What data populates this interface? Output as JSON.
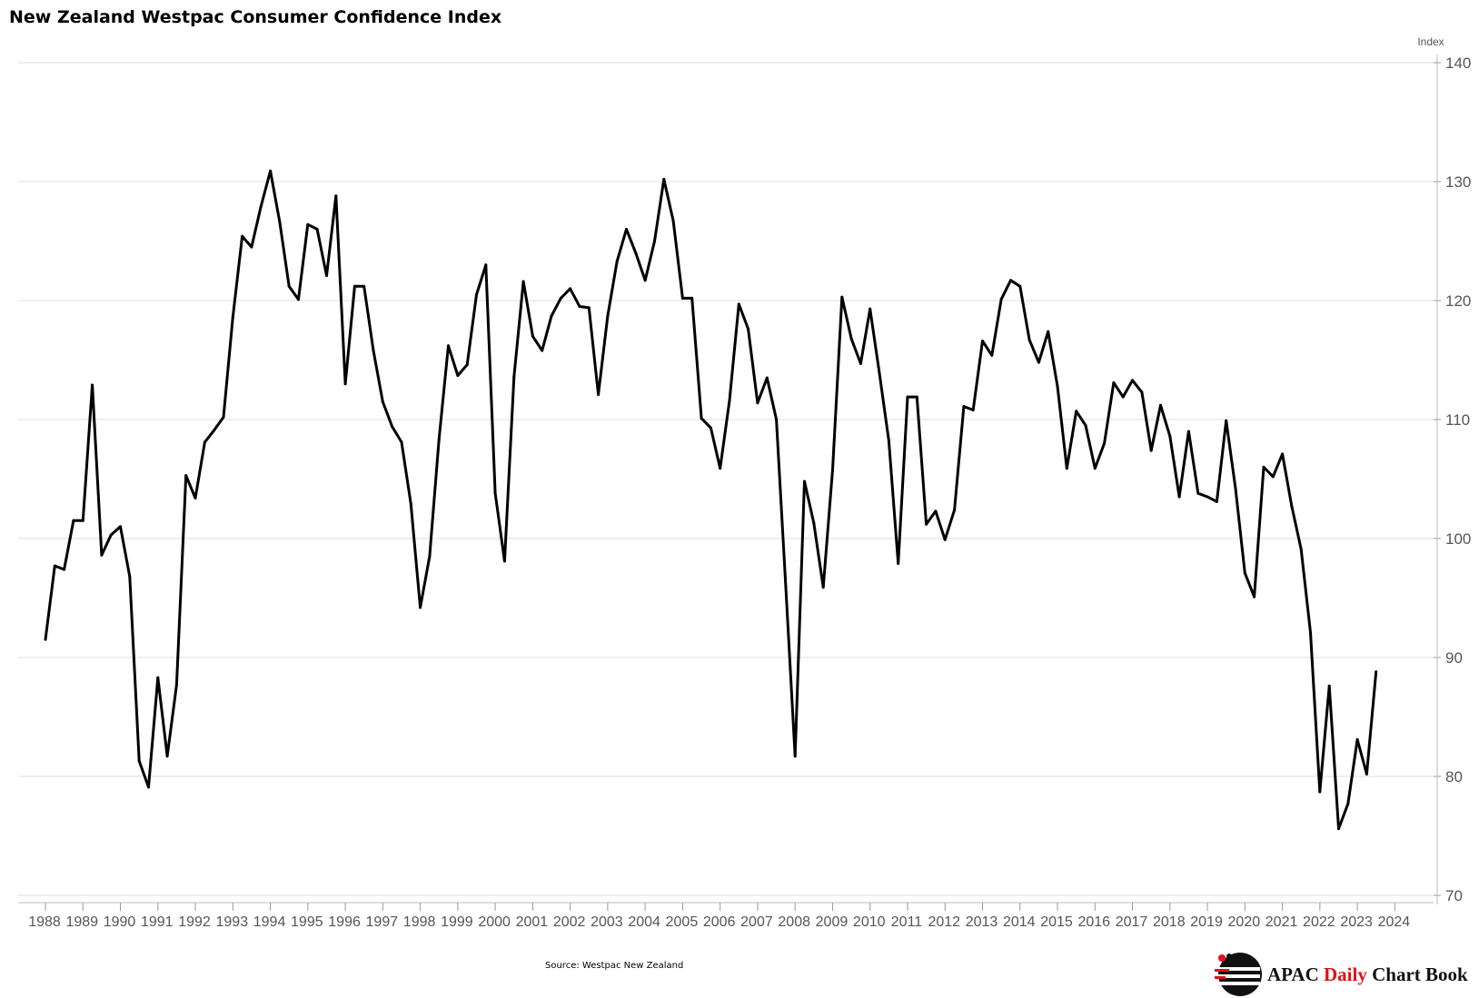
{
  "title": "New Zealand Westpac Consumer Confidence Index",
  "source": "Source: Westpac New Zealand",
  "brand": {
    "part1": "APAC ",
    "part2": "Daily",
    "part3": " Chart Book",
    "logo_icon": "apac-logo-icon",
    "accent": "#e0101a"
  },
  "chart_data": {
    "type": "line",
    "title": "New Zealand Westpac Consumer Confidence Index",
    "ylabel": "Index",
    "xlabel": "",
    "ylim": [
      70,
      140
    ],
    "yticks": [
      70,
      80,
      90,
      100,
      110,
      120,
      130,
      140
    ],
    "xlim": [
      1988.0,
      2024.5
    ],
    "xticks": [
      "1988",
      "1989",
      "1990",
      "1991",
      "1992",
      "1993",
      "1994",
      "1995",
      "1996",
      "1997",
      "1998",
      "1999",
      "2000",
      "2001",
      "2002",
      "2003",
      "2004",
      "2005",
      "2006",
      "2007",
      "2008",
      "2009",
      "2010",
      "2011",
      "2012",
      "2013",
      "2014",
      "2015",
      "2016",
      "2017",
      "2018",
      "2019",
      "2020",
      "2021",
      "2022",
      "2023",
      "2024"
    ],
    "grid": true,
    "line_color": "#000000",
    "series": [
      {
        "x": [
          1988.0,
          1988.25,
          1988.5,
          1988.75,
          1989.0,
          1989.25,
          1989.5,
          1989.75,
          1990.0,
          1990.25,
          1990.5,
          1990.75,
          1991.0,
          1991.25,
          1991.5,
          1991.75,
          1992.0,
          1992.25,
          1992.5,
          1992.75,
          1993.0,
          1993.25,
          1993.5,
          1993.75,
          1994.0,
          1994.25,
          1994.5,
          1994.75,
          1995.0,
          1995.25,
          1995.5,
          1995.75,
          1996.0,
          1996.25,
          1996.5,
          1996.75,
          1997.0,
          1997.25,
          1997.5,
          1997.75,
          1998.0,
          1998.25,
          1998.5,
          1998.75,
          1999.0,
          1999.25,
          1999.5,
          1999.75,
          2000.0,
          2000.25,
          2000.5,
          2000.75,
          2001.0,
          2001.25,
          2001.5,
          2001.75,
          2002.0,
          2002.25,
          2002.5,
          2002.75,
          2003.0,
          2003.25,
          2003.5,
          2003.75,
          2004.0,
          2004.25,
          2004.5,
          2004.75,
          2005.0,
          2005.25,
          2005.5,
          2005.75,
          2006.0,
          2006.25,
          2006.5,
          2006.75,
          2007.0,
          2007.25,
          2007.5,
          2007.75,
          2008.0,
          2008.25,
          2008.5,
          2008.75,
          2009.0,
          2009.25,
          2009.5,
          2009.75,
          2010.0,
          2010.25,
          2010.5,
          2010.75,
          2011.0,
          2011.25,
          2011.5,
          2011.75,
          2012.0,
          2012.25,
          2012.5,
          2012.75,
          2013.0,
          2013.25,
          2013.5,
          2013.75,
          2014.0,
          2014.25,
          2014.5,
          2014.75,
          2015.0,
          2015.25,
          2015.5,
          2015.75,
          2016.0,
          2016.25,
          2016.5,
          2016.75,
          2017.0,
          2017.25,
          2017.5,
          2017.75,
          2018.0,
          2018.25,
          2018.5,
          2018.75,
          2019.0,
          2019.25,
          2019.5,
          2019.75,
          2020.0,
          2020.25,
          2020.5,
          2020.75,
          2021.0,
          2021.25,
          2021.5,
          2021.75,
          2022.0,
          2022.25,
          2022.5,
          2022.75,
          2023.0,
          2023.25,
          2023.5
        ],
        "values": [
          91.5,
          97.7,
          97.4,
          101.5,
          101.5,
          112.9,
          98.6,
          100.3,
          101.0,
          96.8,
          81.3,
          79.1,
          88.3,
          81.7,
          87.7,
          105.3,
          103.4,
          108.1,
          109.1,
          110.2,
          118.6,
          125.4,
          124.5,
          127.9,
          130.9,
          126.6,
          121.2,
          120.1,
          126.4,
          126.0,
          122.1,
          128.8,
          113.0,
          121.2,
          121.2,
          115.8,
          111.5,
          109.4,
          108.1,
          102.9,
          94.2,
          98.5,
          108.3,
          116.2,
          113.7,
          114.6,
          120.5,
          123.0,
          103.8,
          98.1,
          113.6,
          121.6,
          117.0,
          115.8,
          118.7,
          120.2,
          121.0,
          119.5,
          119.4,
          112.1,
          118.7,
          123.3,
          126.0,
          124.0,
          121.7,
          125.0,
          130.2,
          126.7,
          120.2,
          120.2,
          110.1,
          109.3,
          105.9,
          111.6,
          119.7,
          117.6,
          111.4,
          113.5,
          110.0,
          96.0,
          81.7,
          104.8,
          101.3,
          95.9,
          105.8,
          120.3,
          116.8,
          114.7,
          119.3,
          113.9,
          108.2,
          97.9,
          111.9,
          111.9,
          101.2,
          102.3,
          99.9,
          102.4,
          111.1,
          110.8,
          116.6,
          115.4,
          120.1,
          121.7,
          121.2,
          116.7,
          114.8,
          117.4,
          112.8,
          105.9,
          110.7,
          109.5,
          105.9,
          108.0,
          113.1,
          111.9,
          113.3,
          112.3,
          107.4,
          111.2,
          108.6,
          103.5,
          109.0,
          103.8,
          103.5,
          103.1,
          109.9,
          104.2,
          97.1,
          95.1,
          106.0,
          105.2,
          107.1,
          102.7,
          99.1,
          92.1,
          78.7,
          87.6,
          75.6,
          77.7,
          83.1,
          80.2,
          88.8
        ]
      }
    ]
  }
}
